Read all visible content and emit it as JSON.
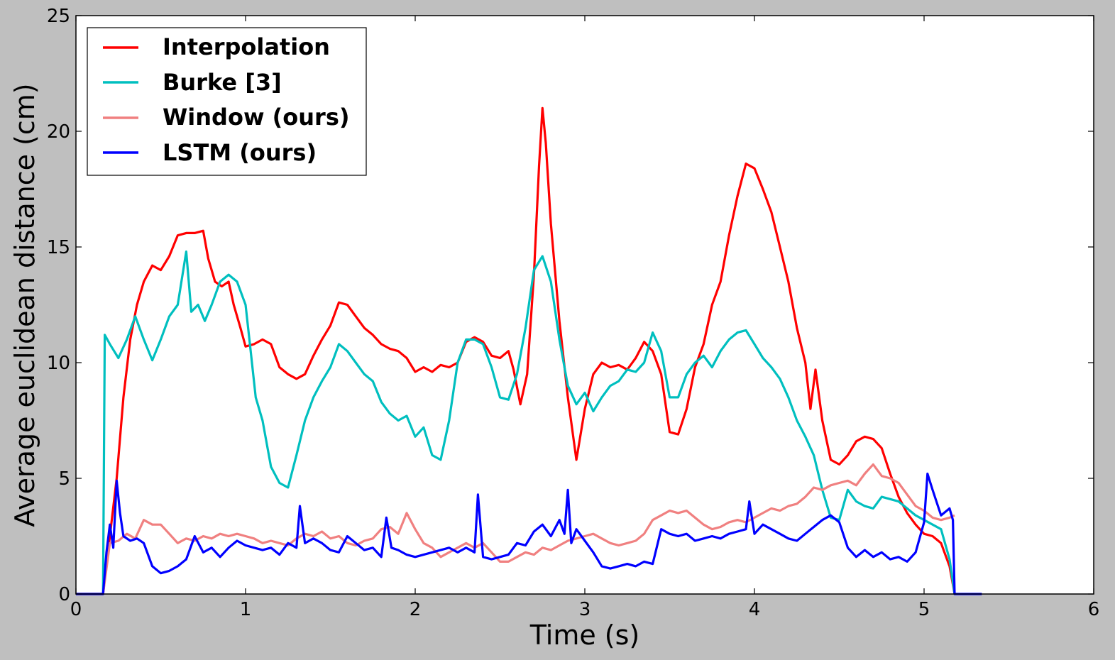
{
  "chart_data": {
    "type": "line",
    "title": "",
    "xlabel": "Time (s)",
    "ylabel": "Average euclidean distance (cm)",
    "xlim": [
      0,
      6
    ],
    "ylim": [
      0,
      25
    ],
    "xticks": [
      0,
      1,
      2,
      3,
      4,
      5,
      6
    ],
    "yticks": [
      0,
      5,
      10,
      15,
      20,
      25
    ],
    "xtick_labels": [
      "0",
      "1",
      "2",
      "3",
      "4",
      "5",
      "6"
    ],
    "ytick_labels": [
      "0",
      "5",
      "10",
      "15",
      "20",
      "25"
    ],
    "grid": false,
    "legend_position": "top-left",
    "series": [
      {
        "name": "Interpolation",
        "color": "#ff0000",
        "x": [
          0,
          0.16,
          0.2,
          0.24,
          0.28,
          0.32,
          0.36,
          0.4,
          0.45,
          0.5,
          0.55,
          0.6,
          0.65,
          0.7,
          0.75,
          0.78,
          0.82,
          0.86,
          0.9,
          0.93,
          0.97,
          1.0,
          1.05,
          1.1,
          1.15,
          1.2,
          1.25,
          1.3,
          1.35,
          1.4,
          1.45,
          1.5,
          1.55,
          1.6,
          1.65,
          1.7,
          1.75,
          1.8,
          1.85,
          1.9,
          1.95,
          2.0,
          2.05,
          2.1,
          2.15,
          2.2,
          2.25,
          2.3,
          2.35,
          2.4,
          2.45,
          2.5,
          2.55,
          2.58,
          2.62,
          2.66,
          2.7,
          2.73,
          2.75,
          2.77,
          2.8,
          2.85,
          2.9,
          2.95,
          3.0,
          3.05,
          3.1,
          3.15,
          3.2,
          3.25,
          3.3,
          3.35,
          3.4,
          3.45,
          3.5,
          3.55,
          3.6,
          3.65,
          3.7,
          3.75,
          3.8,
          3.85,
          3.9,
          3.95,
          4.0,
          4.05,
          4.1,
          4.15,
          4.2,
          4.25,
          4.3,
          4.33,
          4.36,
          4.4,
          4.45,
          4.5,
          4.55,
          4.6,
          4.65,
          4.7,
          4.75,
          4.8,
          4.85,
          4.9,
          4.95,
          5.0,
          5.05,
          5.1,
          5.15,
          5.18
        ],
        "y": [
          0,
          0,
          2.5,
          5,
          8.5,
          11,
          12.5,
          13.5,
          14.2,
          14,
          14.6,
          15.5,
          15.6,
          15.6,
          15.7,
          14.5,
          13.5,
          13.3,
          13.5,
          12.5,
          11.5,
          10.7,
          10.8,
          11,
          10.8,
          9.8,
          9.5,
          9.3,
          9.5,
          10.3,
          11,
          11.6,
          12.6,
          12.5,
          12,
          11.5,
          11.2,
          10.8,
          10.6,
          10.5,
          10.2,
          9.6,
          9.8,
          9.6,
          9.9,
          9.8,
          10,
          10.9,
          11.1,
          10.9,
          10.3,
          10.2,
          10.5,
          9.7,
          8.2,
          9.5,
          13.8,
          18.5,
          21,
          19.5,
          16,
          11.8,
          8.5,
          5.8,
          8,
          9.5,
          10,
          9.8,
          9.9,
          9.7,
          10.2,
          10.9,
          10.5,
          9.5,
          7,
          6.9,
          8,
          9.8,
          10.8,
          12.5,
          13.5,
          15.5,
          17.2,
          18.6,
          18.4,
          17.5,
          16.5,
          15,
          13.5,
          11.5,
          10,
          8,
          9.7,
          7.5,
          5.8,
          5.6,
          6,
          6.6,
          6.8,
          6.7,
          6.3,
          5.2,
          4.2,
          3.5,
          3,
          2.6,
          2.5,
          2.2,
          1.2,
          0
        ]
      },
      {
        "name": "Burke [3]",
        "color": "#00bfbf",
        "x": [
          0,
          0.16,
          0.17,
          0.2,
          0.25,
          0.3,
          0.35,
          0.4,
          0.45,
          0.5,
          0.55,
          0.6,
          0.65,
          0.68,
          0.72,
          0.76,
          0.8,
          0.85,
          0.9,
          0.95,
          1.0,
          1.03,
          1.06,
          1.1,
          1.15,
          1.2,
          1.25,
          1.3,
          1.35,
          1.4,
          1.45,
          1.5,
          1.55,
          1.6,
          1.65,
          1.7,
          1.75,
          1.8,
          1.85,
          1.9,
          1.95,
          2.0,
          2.05,
          2.1,
          2.15,
          2.2,
          2.25,
          2.3,
          2.35,
          2.4,
          2.45,
          2.5,
          2.55,
          2.6,
          2.65,
          2.7,
          2.75,
          2.8,
          2.85,
          2.9,
          2.95,
          3.0,
          3.05,
          3.1,
          3.15,
          3.2,
          3.25,
          3.3,
          3.35,
          3.4,
          3.45,
          3.5,
          3.55,
          3.6,
          3.65,
          3.7,
          3.75,
          3.8,
          3.85,
          3.9,
          3.95,
          4.0,
          4.05,
          4.1,
          4.15,
          4.2,
          4.25,
          4.3,
          4.35,
          4.4,
          4.45,
          4.5,
          4.55,
          4.6,
          4.65,
          4.7,
          4.75,
          4.8,
          4.85,
          4.9,
          4.95,
          5.0,
          5.05,
          5.1,
          5.15,
          5.18
        ],
        "y": [
          0,
          0,
          11.2,
          10.8,
          10.2,
          11,
          12,
          11,
          10.1,
          11,
          12,
          12.5,
          14.8,
          12.2,
          12.5,
          11.8,
          12.5,
          13.5,
          13.8,
          13.5,
          12.5,
          10.5,
          8.5,
          7.5,
          5.5,
          4.8,
          4.6,
          6,
          7.5,
          8.5,
          9.2,
          9.8,
          10.8,
          10.5,
          10,
          9.5,
          9.2,
          8.3,
          7.8,
          7.5,
          7.7,
          6.8,
          7.2,
          6,
          5.8,
          7.5,
          10,
          11,
          11,
          10.8,
          9.8,
          8.5,
          8.4,
          9.5,
          11.5,
          14,
          14.6,
          13.5,
          11,
          9,
          8.2,
          8.7,
          7.9,
          8.5,
          9,
          9.2,
          9.7,
          9.6,
          10,
          11.3,
          10.5,
          8.5,
          8.5,
          9.5,
          10,
          10.3,
          9.8,
          10.5,
          11,
          11.3,
          11.4,
          10.8,
          10.2,
          9.8,
          9.3,
          8.5,
          7.5,
          6.8,
          6,
          4.5,
          3.3,
          3.2,
          4.5,
          4,
          3.8,
          3.7,
          4.2,
          4.1,
          4,
          3.7,
          3.4,
          3.2,
          3,
          2.8,
          1.5,
          0
        ]
      },
      {
        "name": "Window (ours)",
        "color": "#f08080",
        "x": [
          0,
          0.16,
          0.2,
          0.25,
          0.3,
          0.35,
          0.4,
          0.45,
          0.5,
          0.55,
          0.6,
          0.65,
          0.7,
          0.75,
          0.8,
          0.85,
          0.9,
          0.95,
          1.0,
          1.05,
          1.1,
          1.15,
          1.2,
          1.25,
          1.3,
          1.35,
          1.4,
          1.45,
          1.5,
          1.55,
          1.6,
          1.65,
          1.7,
          1.75,
          1.8,
          1.85,
          1.9,
          1.95,
          2.0,
          2.05,
          2.1,
          2.15,
          2.2,
          2.25,
          2.3,
          2.35,
          2.4,
          2.45,
          2.5,
          2.55,
          2.6,
          2.65,
          2.7,
          2.75,
          2.8,
          2.85,
          2.9,
          2.95,
          3.0,
          3.05,
          3.1,
          3.15,
          3.2,
          3.25,
          3.3,
          3.35,
          3.4,
          3.45,
          3.5,
          3.55,
          3.6,
          3.65,
          3.7,
          3.75,
          3.8,
          3.85,
          3.9,
          3.95,
          4.0,
          4.05,
          4.1,
          4.15,
          4.2,
          4.25,
          4.3,
          4.35,
          4.4,
          4.45,
          4.5,
          4.55,
          4.6,
          4.65,
          4.7,
          4.75,
          4.8,
          4.85,
          4.9,
          4.95,
          5.0,
          5.05,
          5.1,
          5.15,
          5.18
        ],
        "y": [
          0,
          0,
          2.2,
          2.3,
          2.6,
          2.4,
          3.2,
          3,
          3,
          2.6,
          2.2,
          2.4,
          2.3,
          2.5,
          2.4,
          2.6,
          2.5,
          2.6,
          2.5,
          2.4,
          2.2,
          2.3,
          2.2,
          2.1,
          2.4,
          2.6,
          2.5,
          2.7,
          2.4,
          2.5,
          2.2,
          2.1,
          2.3,
          2.4,
          2.8,
          2.9,
          2.6,
          3.5,
          2.8,
          2.2,
          2,
          1.6,
          1.8,
          2,
          2.2,
          2,
          2.2,
          1.8,
          1.4,
          1.4,
          1.6,
          1.8,
          1.7,
          2,
          1.9,
          2.1,
          2.3,
          2.4,
          2.5,
          2.6,
          2.4,
          2.2,
          2.1,
          2.2,
          2.3,
          2.6,
          3.2,
          3.4,
          3.6,
          3.5,
          3.6,
          3.3,
          3,
          2.8,
          2.9,
          3.1,
          3.2,
          3.1,
          3.3,
          3.5,
          3.7,
          3.6,
          3.8,
          3.9,
          4.2,
          4.6,
          4.5,
          4.7,
          4.8,
          4.9,
          4.7,
          5.2,
          5.6,
          5.1,
          5,
          4.8,
          4.3,
          3.8,
          3.6,
          3.3,
          3.2,
          3.3,
          3.4
        ]
      },
      {
        "name": "LSTM (ours)",
        "color": "#0000ff",
        "x": [
          0,
          0.16,
          0.18,
          0.2,
          0.22,
          0.24,
          0.26,
          0.28,
          0.32,
          0.36,
          0.4,
          0.45,
          0.5,
          0.55,
          0.6,
          0.65,
          0.7,
          0.75,
          0.8,
          0.85,
          0.9,
          0.95,
          1.0,
          1.05,
          1.1,
          1.15,
          1.2,
          1.25,
          1.3,
          1.32,
          1.35,
          1.4,
          1.45,
          1.5,
          1.55,
          1.6,
          1.65,
          1.7,
          1.75,
          1.8,
          1.83,
          1.86,
          1.9,
          1.95,
          2.0,
          2.05,
          2.1,
          2.15,
          2.2,
          2.25,
          2.3,
          2.35,
          2.37,
          2.4,
          2.45,
          2.5,
          2.55,
          2.6,
          2.65,
          2.7,
          2.75,
          2.8,
          2.85,
          2.88,
          2.9,
          2.92,
          2.95,
          3.0,
          3.05,
          3.1,
          3.15,
          3.2,
          3.25,
          3.3,
          3.35,
          3.4,
          3.45,
          3.5,
          3.55,
          3.6,
          3.65,
          3.7,
          3.75,
          3.8,
          3.85,
          3.9,
          3.95,
          3.97,
          4.0,
          4.05,
          4.1,
          4.15,
          4.2,
          4.25,
          4.3,
          4.35,
          4.4,
          4.45,
          4.5,
          4.55,
          4.6,
          4.65,
          4.7,
          4.75,
          4.8,
          4.85,
          4.9,
          4.95,
          5.0,
          5.02,
          5.05,
          5.1,
          5.15,
          5.17,
          5.18,
          5.34
        ],
        "y": [
          0,
          0,
          1.8,
          3,
          2,
          4.9,
          3.5,
          2.5,
          2.3,
          2.4,
          2.2,
          1.2,
          0.9,
          1,
          1.2,
          1.5,
          2.5,
          1.8,
          2,
          1.6,
          2,
          2.3,
          2.1,
          2,
          1.9,
          2,
          1.7,
          2.2,
          2,
          3.8,
          2.2,
          2.4,
          2.2,
          1.9,
          1.8,
          2.5,
          2.2,
          1.9,
          2,
          1.6,
          3.3,
          2,
          1.9,
          1.7,
          1.6,
          1.7,
          1.8,
          1.9,
          2,
          1.8,
          2,
          1.8,
          4.3,
          1.6,
          1.5,
          1.6,
          1.7,
          2.2,
          2.1,
          2.7,
          3,
          2.5,
          3.2,
          2.6,
          4.5,
          2.2,
          2.8,
          2.3,
          1.8,
          1.2,
          1.1,
          1.2,
          1.3,
          1.2,
          1.4,
          1.3,
          2.8,
          2.6,
          2.5,
          2.6,
          2.3,
          2.4,
          2.5,
          2.4,
          2.6,
          2.7,
          2.8,
          4,
          2.6,
          3,
          2.8,
          2.6,
          2.4,
          2.3,
          2.6,
          2.9,
          3.2,
          3.4,
          3.1,
          2,
          1.6,
          1.9,
          1.6,
          1.8,
          1.5,
          1.6,
          1.4,
          1.8,
          3.1,
          5.2,
          4.5,
          3.4,
          3.7,
          3.2,
          0,
          0
        ]
      }
    ]
  }
}
